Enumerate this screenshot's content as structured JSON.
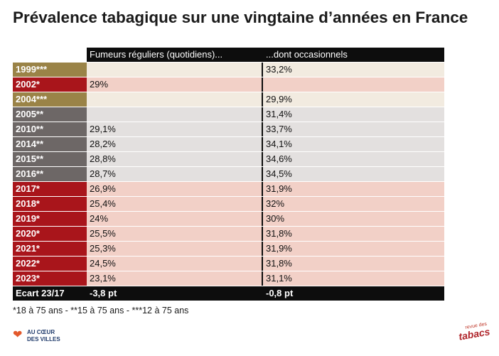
{
  "title": "Prévalence tabagique sur une vingtaine d’années en France",
  "colors": {
    "header_bg": "#0d0d0d",
    "year_gold": "#9a8347",
    "year_red": "#a9151b",
    "year_gray": "#6d6766",
    "row_gold": "#f2ebe0",
    "row_red": "#f2d0c7",
    "row_gray": "#e3e0df"
  },
  "chart_data": {
    "type": "table",
    "columns": [
      "Fumeurs réguliers (quotidiens)...",
      "...dont occasionnels"
    ],
    "rows": [
      {
        "year": "1999***",
        "group": "gold",
        "regular": "",
        "occasional": "33,2%"
      },
      {
        "year": "2002*",
        "group": "red",
        "regular": "29%",
        "occasional": ""
      },
      {
        "year": "2004***",
        "group": "gold",
        "regular": "",
        "occasional": "29,9%"
      },
      {
        "year": "2005**",
        "group": "gray",
        "regular": "",
        "occasional": "31,4%"
      },
      {
        "year": "2010**",
        "group": "gray",
        "regular": "29,1%",
        "occasional": "33,7%"
      },
      {
        "year": "2014**",
        "group": "gray",
        "regular": "28,2%",
        "occasional": "34,1%"
      },
      {
        "year": "2015**",
        "group": "gray",
        "regular": "28,8%",
        "occasional": "34,6%"
      },
      {
        "year": "2016**",
        "group": "gray",
        "regular": "28,7%",
        "occasional": "34,5%"
      },
      {
        "year": "2017*",
        "group": "red",
        "regular": "26,9%",
        "occasional": "31,9%"
      },
      {
        "year": "2018*",
        "group": "red",
        "regular": "25,4%",
        "occasional": "32%"
      },
      {
        "year": "2019*",
        "group": "red",
        "regular": "24%",
        "occasional": "30%"
      },
      {
        "year": "2020*",
        "group": "red",
        "regular": "25,5%",
        "occasional": "31,8%"
      },
      {
        "year": "2021*",
        "group": "red",
        "regular": "25,3%",
        "occasional": "31,9%"
      },
      {
        "year": "2022*",
        "group": "red",
        "regular": "24,5%",
        "occasional": "31,8%"
      },
      {
        "year": "2023*",
        "group": "red",
        "regular": "23,1%",
        "occasional": "31,1%"
      }
    ],
    "summary": {
      "label": "Ecart 23/17",
      "regular": "-3,8 pt",
      "occasional": "-0,8 pt"
    }
  },
  "footnote": "*18 à 75 ans - **15 à 75 ans - ***12 à 75 ans",
  "logos": {
    "left": {
      "line1": "AU CŒUR",
      "line2": "DES VILLES",
      "icon": "heart-city-icon"
    },
    "right": {
      "top": "revue des",
      "main": "tabacs"
    }
  }
}
